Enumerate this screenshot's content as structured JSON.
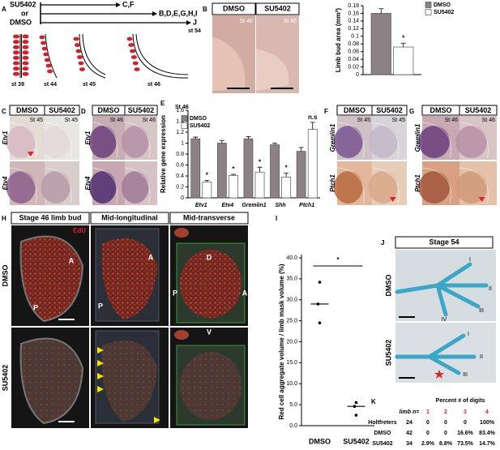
{
  "panel_labels": [
    "A",
    "B",
    "C",
    "D",
    "E",
    "F",
    "G",
    "H",
    "I",
    "J",
    "K"
  ],
  "panel_a": {
    "treatment": "SU5402",
    "joiner": "or",
    "control": "DMSO",
    "arrows": [
      "C,F",
      "B,D,E,G,H,I",
      "J"
    ],
    "end_stage": "st 54",
    "stages": [
      "st 39",
      "st 44",
      "st 45",
      "st 46"
    ]
  },
  "panel_b": {
    "columns": [
      "DMSO",
      "SU5402"
    ],
    "stages": [
      "St 46",
      "St 46"
    ]
  },
  "panel_c": {
    "columns": [
      "DMSO",
      "SU5402"
    ],
    "stages": [
      "St 45",
      "St 45"
    ],
    "rows": [
      "Etv1",
      "Etv4"
    ]
  },
  "panel_d": {
    "columns": [
      "DMSO",
      "SU5402"
    ],
    "stages": [
      "St 46",
      "St 46"
    ],
    "rows": [
      "Etv1",
      "Etv4"
    ]
  },
  "panel_f": {
    "columns": [
      "DMSO",
      "SU5402"
    ],
    "stages": [
      "St 45",
      "St 45"
    ],
    "rows": [
      "Gremlin1",
      "Ptch1"
    ]
  },
  "panel_g": {
    "columns": [
      "DMSO",
      "SU5402"
    ],
    "stages": [
      "St 46",
      "St 46"
    ],
    "rows": [
      "Gremlin1",
      "Ptch1"
    ]
  },
  "panel_h": {
    "columns": [
      "Stage 46 limb bud",
      "Mid-longitudinal",
      "Mid-transverse"
    ],
    "rows": [
      "DMSO",
      "SU5402"
    ],
    "stain": "EdU",
    "axis_labels": [
      "A",
      "P",
      "A",
      "P",
      "D",
      "P",
      "A",
      "V"
    ]
  },
  "panel_j": {
    "title": "Stage 54",
    "rows": [
      "DMSO",
      "SU5402"
    ],
    "digits_dmso": [
      "I",
      "II",
      "III",
      "IV"
    ],
    "digits_su5402": [
      "I",
      "II",
      "III"
    ]
  },
  "panel_k": {
    "header": "Percent # of digits",
    "columns": [
      "limb n=",
      "1",
      "2",
      "3",
      "4"
    ],
    "rows": [
      {
        "name": "Holtfreters",
        "cells": [
          "24",
          "0",
          "0",
          "0",
          "100%"
        ]
      },
      {
        "name": "DMSO",
        "cells": [
          "42",
          "0",
          "0",
          "16.6%",
          "83.4%"
        ]
      },
      {
        "name": "SU5402",
        "cells": [
          "34",
          "2.9%",
          "8.8%",
          "73.5%",
          "14.7%"
        ]
      }
    ]
  },
  "chart_data": [
    {
      "type": "bar",
      "y_label": "Limb bud area (mm²)",
      "ylim": [
        0,
        0.18
      ],
      "yticks": [
        0,
        0.02,
        0.04,
        0.06,
        0.08,
        0.1,
        0.12,
        0.14,
        0.16,
        0.18
      ],
      "legend": "right",
      "series": [
        {
          "name": "DMSO",
          "color": "#8c8184",
          "values": [
            0.16
          ],
          "errors": [
            0.012
          ]
        },
        {
          "name": "SU5402",
          "color": "#ffffff",
          "values": [
            0.072
          ],
          "errors": [
            0.01
          ],
          "significance": [
            "*"
          ]
        }
      ]
    },
    {
      "type": "bar",
      "title": "St 46",
      "y_label": "Relative gene expression",
      "ylim": [
        0,
        1.6
      ],
      "yticks": [
        0,
        0.2,
        0.4,
        0.6,
        0.8,
        1,
        1.2,
        1.4,
        1.6
      ],
      "legend": "upper left",
      "categories": [
        "Etv1",
        "Etv4",
        "Gremlin1",
        "Shh",
        "Ptch1"
      ],
      "series": [
        {
          "name": "DMSO",
          "color": "#8c8184",
          "values": [
            1.08,
            1.0,
            1.08,
            0.97,
            0.85
          ],
          "errors": [
            0.03,
            0.05,
            0.04,
            0.03,
            0.07
          ]
        },
        {
          "name": "SU5402",
          "color": "#ffffff",
          "values": [
            0.29,
            0.41,
            0.47,
            0.38,
            1.25
          ],
          "errors": [
            0.03,
            0.02,
            0.09,
            0.07,
            0.13
          ],
          "significance": [
            "*",
            "*",
            "*",
            "*",
            "n.s"
          ]
        }
      ]
    },
    {
      "type": "scatter",
      "y_label": "Red cell aggregate volume / limb mask volume (%)",
      "ylim": [
        0,
        40
      ],
      "yticks": [
        {
          "value": 0,
          "label": "0.0"
        },
        {
          "value": 5,
          "label": "5.0"
        },
        {
          "value": 10,
          "label": "10.0"
        },
        {
          "value": 15,
          "label": "15.0"
        },
        {
          "value": 20,
          "label": "20.0"
        },
        {
          "value": 25,
          "label": "25.0"
        },
        {
          "value": 30,
          "label": "30.0"
        },
        {
          "value": 35,
          "label": "35.0"
        },
        {
          "value": 40,
          "label": "40.0"
        }
      ],
      "categories": [
        "DMSO",
        "SU5402"
      ],
      "points": [
        [
          34.2,
          29,
          24.5
        ],
        [
          5.5,
          4.6,
          2.5
        ]
      ],
      "medians": [
        29,
        4.6
      ],
      "annotation": "*",
      "annotation_color": "#e0202a"
    }
  ]
}
